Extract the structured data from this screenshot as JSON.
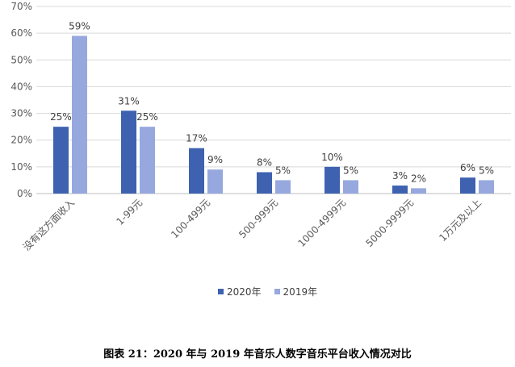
{
  "caption": "图表 21：2020 年与 2019 年音乐人数字音乐平台收入情况对比",
  "chart_data": {
    "type": "bar",
    "categories": [
      "没有这方面收入",
      "1-99元",
      "100-499元",
      "500-999元",
      "1000-4999元",
      "5000-9999元",
      "1万元及以上"
    ],
    "series": [
      {
        "name": "2020年",
        "values": [
          25,
          31,
          17,
          8,
          10,
          3,
          6
        ],
        "color": "#3e62b0"
      },
      {
        "name": "2019年",
        "values": [
          59,
          25,
          9,
          5,
          5,
          2,
          5
        ],
        "color": "#96a8de"
      }
    ],
    "ylim": [
      0,
      70
    ],
    "yticks": [
      0,
      10,
      20,
      30,
      40,
      50,
      60,
      70
    ],
    "value_suffix": "%",
    "grid": true,
    "legend_position": "bottom"
  }
}
